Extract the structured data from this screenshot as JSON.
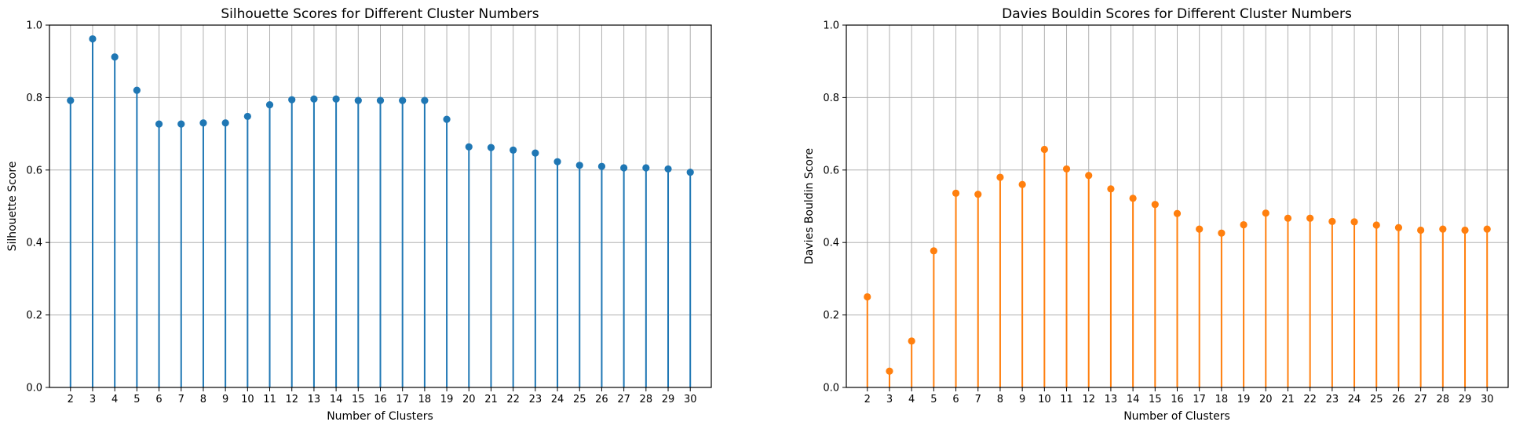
{
  "chart_data": [
    {
      "type": "stem",
      "title": "Silhouette Scores for Different Cluster Numbers",
      "xlabel": "Number of Clusters",
      "ylabel": "Silhouette Score",
      "x": [
        2,
        3,
        4,
        5,
        6,
        7,
        8,
        9,
        10,
        11,
        12,
        13,
        14,
        15,
        16,
        17,
        18,
        19,
        20,
        21,
        22,
        23,
        24,
        25,
        26,
        27,
        28,
        29,
        30
      ],
      "values": [
        0.792,
        0.962,
        0.912,
        0.82,
        0.727,
        0.727,
        0.73,
        0.73,
        0.748,
        0.78,
        0.794,
        0.796,
        0.796,
        0.792,
        0.792,
        0.792,
        0.792,
        0.74,
        0.664,
        0.662,
        0.655,
        0.647,
        0.623,
        0.613,
        0.61,
        0.606,
        0.606,
        0.603,
        0.594
      ],
      "xlim": [
        1.05,
        30.95
      ],
      "ylim": [
        0.0,
        1.0
      ],
      "yticks": [
        0.0,
        0.2,
        0.4,
        0.6,
        0.8,
        1.0
      ],
      "ytick_labels": [
        "0.0",
        "0.2",
        "0.4",
        "0.6",
        "0.8",
        "1.0"
      ],
      "xtick_labels": [
        "2",
        "3",
        "4",
        "5",
        "6",
        "7",
        "8",
        "9",
        "10",
        "11",
        "12",
        "13",
        "14",
        "15",
        "16",
        "17",
        "18",
        "19",
        "20",
        "21",
        "22",
        "23",
        "24",
        "25",
        "26",
        "27",
        "28",
        "29",
        "30"
      ],
      "grid": true,
      "color": "#1f77b4"
    },
    {
      "type": "stem",
      "title": "Davies Bouldin Scores for Different Cluster Numbers",
      "xlabel": "Number of Clusters",
      "ylabel": "Davies Bouldin Score",
      "x": [
        2,
        3,
        4,
        5,
        6,
        7,
        8,
        9,
        10,
        11,
        12,
        13,
        14,
        15,
        16,
        17,
        18,
        19,
        20,
        21,
        22,
        23,
        24,
        25,
        26,
        27,
        28,
        29,
        30
      ],
      "values": [
        0.25,
        0.045,
        0.128,
        0.377,
        0.536,
        0.533,
        0.58,
        0.56,
        0.657,
        0.603,
        0.585,
        0.548,
        0.522,
        0.505,
        0.48,
        0.437,
        0.426,
        0.449,
        0.481,
        0.467,
        0.467,
        0.458,
        0.457,
        0.448,
        0.441,
        0.434,
        0.437,
        0.434,
        0.437
      ],
      "xlim": [
        1.05,
        30.95
      ],
      "ylim": [
        0.0,
        1.0
      ],
      "yticks": [
        0.0,
        0.2,
        0.4,
        0.6,
        0.8,
        1.0
      ],
      "ytick_labels": [
        "0.0",
        "0.2",
        "0.4",
        "0.6",
        "0.8",
        "1.0"
      ],
      "xtick_labels": [
        "2",
        "3",
        "4",
        "5",
        "6",
        "7",
        "8",
        "9",
        "10",
        "11",
        "12",
        "13",
        "14",
        "15",
        "16",
        "17",
        "18",
        "19",
        "20",
        "21",
        "22",
        "23",
        "24",
        "25",
        "26",
        "27",
        "28",
        "29",
        "30"
      ],
      "grid": true,
      "color": "#ff7f0e"
    }
  ]
}
